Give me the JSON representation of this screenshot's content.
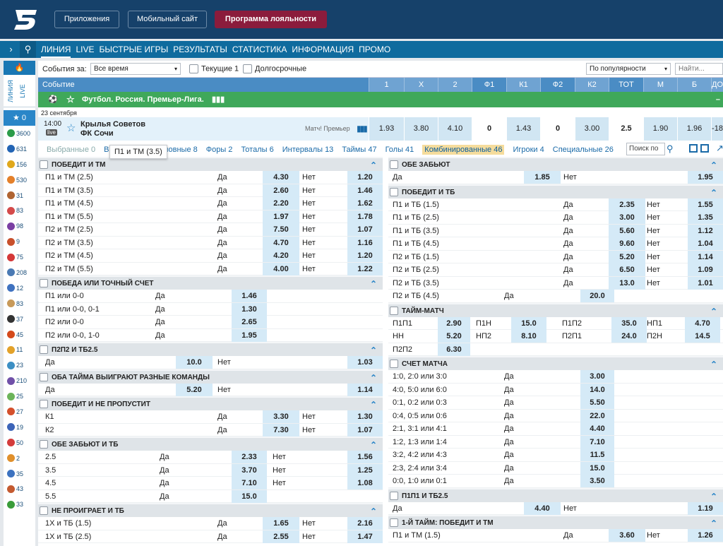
{
  "header": {
    "apps": "Приложения",
    "mobile": "Мобильный сайт",
    "loyalty": "Программа лояльности"
  },
  "nav": {
    "items": [
      "ЛИНИЯ",
      "LIVE",
      "БЫСТРЫЕ ИГРЫ",
      "РЕЗУЛЬТАТЫ",
      "СТАТИСТИКА",
      "ИНФОРМАЦИЯ",
      "ПРОМО"
    ]
  },
  "sidebar": {
    "tab_line": "ЛИНИЯ",
    "tab_live": "LIVE",
    "favorites": "0",
    "counts": [
      "3600",
      "631",
      "156",
      "530",
      "31",
      "83",
      "98",
      "9",
      "75",
      "208",
      "12",
      "83",
      "37",
      "45",
      "11",
      "23",
      "210",
      "25",
      "27",
      "19",
      "50",
      "2",
      "35",
      "43",
      "33"
    ],
    "colors": [
      "#2c9c49",
      "#2364b4",
      "#e0a81c",
      "#e4802a",
      "#b06432",
      "#d44a4a",
      "#7a3fa3",
      "#c8502c",
      "#d43838",
      "#4a7ab4",
      "#3f72c0",
      "#c89a5a",
      "#333333",
      "#d44a1c",
      "#e3a22a",
      "#3c8fc4",
      "#7050a8",
      "#6cb45a",
      "#d4502c",
      "#3c64b8",
      "#d43c3c",
      "#e0902c",
      "#3c72c0",
      "#c45a30",
      "#3a9c3a"
    ]
  },
  "filter": {
    "events_label": "События за:",
    "period": "Все время",
    "current": "Текущие 1",
    "longterm": "Долгосрочные",
    "sort": "По популярности",
    "search_placeholder": "Найти..."
  },
  "table_header": {
    "event": "Событие",
    "cols": [
      "1",
      "X",
      "2",
      "Ф1",
      "К1",
      "Ф2",
      "К2",
      "ТОТ",
      "М",
      "Б",
      "ДО"
    ]
  },
  "league": {
    "name": "Футбол. Россия. Премьер-Лига."
  },
  "match": {
    "date": "23 сентября",
    "time": "14:00",
    "live": "live",
    "team1": "Крылья Советов",
    "team2": "ФК Сочи",
    "note": "Матч! Премьер",
    "odds": [
      "1.93",
      "3.80",
      "4.10",
      "0",
      "1.43",
      "0",
      "3.00",
      "2.5",
      "1.90",
      "1.96",
      "-18"
    ]
  },
  "market_tabs": [
    "Выбранные 0",
    "Все исходы",
    "Основные 8",
    "Форы 2",
    "Тоталы 6",
    "Интервалы 13",
    "Таймы 47",
    "Голы 41",
    "Комбинированные 46",
    "Игроки 4",
    "Специальные 26"
  ],
  "market_search": "Поиск по",
  "tooltip": "П1 и ТМ (3.5)",
  "left_blocks": [
    {
      "title": "ПОБЕДИТ И ТМ",
      "rows": [
        [
          "П1 и ТМ (2.5)",
          "Да",
          "4.30",
          "Нет",
          "1.20"
        ],
        [
          "П1 и ТМ (3.5)",
          "Да",
          "2.60",
          "Нет",
          "1.46"
        ],
        [
          "П1 и ТМ (4.5)",
          "Да",
          "2.20",
          "Нет",
          "1.62"
        ],
        [
          "П1 и ТМ (5.5)",
          "Да",
          "1.97",
          "Нет",
          "1.78"
        ],
        [
          "П2 и ТМ (2.5)",
          "Да",
          "7.50",
          "Нет",
          "1.07"
        ],
        [
          "П2 и ТМ (3.5)",
          "Да",
          "4.70",
          "Нет",
          "1.16"
        ],
        [
          "П2 и ТМ (4.5)",
          "Да",
          "4.20",
          "Нет",
          "1.20"
        ],
        [
          "П2 и ТМ (5.5)",
          "Да",
          "4.00",
          "Нет",
          "1.22"
        ]
      ]
    },
    {
      "title": "ПОБЕДА ИЛИ ТОЧНЫЙ СЧЕТ",
      "rows": [
        [
          "П1 или 0-0",
          "Да",
          "1.46"
        ],
        [
          "П1 или 0-0, 0-1",
          "Да",
          "1.30"
        ],
        [
          "П2 или 0-0",
          "Да",
          "2.65"
        ],
        [
          "П2 или 0-0, 1-0",
          "Да",
          "1.95"
        ]
      ]
    },
    {
      "title": "П2П2 И ТБ2.5",
      "rows": [
        [
          "Да",
          "10.0",
          "Нет",
          "1.03"
        ]
      ]
    },
    {
      "title": "ОБА ТАЙМА ВЫИГРАЮТ РАЗНЫЕ КОМАНДЫ",
      "rows": [
        [
          "Да",
          "5.20",
          "Нет",
          "1.14"
        ]
      ]
    },
    {
      "title": "ПОБЕДИТ И НЕ ПРОПУСТИТ",
      "rows": [
        [
          "К1",
          "Да",
          "3.30",
          "Нет",
          "1.30"
        ],
        [
          "К2",
          "Да",
          "7.30",
          "Нет",
          "1.07"
        ]
      ]
    },
    {
      "title": "ОБЕ ЗАБЬЮТ И ТБ",
      "rows": [
        [
          "2.5",
          "Да",
          "2.33",
          "Нет",
          "1.56"
        ],
        [
          "3.5",
          "Да",
          "3.70",
          "Нет",
          "1.25"
        ],
        [
          "4.5",
          "Да",
          "7.10",
          "Нет",
          "1.08"
        ],
        [
          "5.5",
          "Да",
          "15.0"
        ]
      ]
    },
    {
      "title": "НЕ ПРОИГРАЕТ И ТБ",
      "rows": [
        [
          "1Х и ТБ (1.5)",
          "Да",
          "1.65",
          "Нет",
          "2.16"
        ],
        [
          "1Х и ТБ (2.5)",
          "Да",
          "2.55",
          "Нет",
          "1.47"
        ]
      ]
    }
  ],
  "right_blocks": [
    {
      "title": "ОБЕ ЗАБЬЮТ",
      "rows": [
        [
          "Да",
          "1.85",
          "Нет",
          "1.95"
        ]
      ]
    },
    {
      "title": "ПОБЕДИТ И ТБ",
      "rows": [
        [
          "П1 и ТБ (1.5)",
          "Да",
          "2.35",
          "Нет",
          "1.55"
        ],
        [
          "П1 и ТБ (2.5)",
          "Да",
          "3.00",
          "Нет",
          "1.35"
        ],
        [
          "П1 и ТБ (3.5)",
          "Да",
          "5.60",
          "Нет",
          "1.12"
        ],
        [
          "П1 и ТБ (4.5)",
          "Да",
          "9.60",
          "Нет",
          "1.04"
        ],
        [
          "П2 и ТБ (1.5)",
          "Да",
          "5.20",
          "Нет",
          "1.14"
        ],
        [
          "П2 и ТБ (2.5)",
          "Да",
          "6.50",
          "Нет",
          "1.09"
        ],
        [
          "П2 и ТБ (3.5)",
          "Да",
          "13.0",
          "Нет",
          "1.01"
        ],
        [
          "П2 и ТБ (4.5)",
          "Да",
          "20.0"
        ]
      ]
    },
    {
      "title": "ТАЙМ-МАТЧ",
      "rows": [
        [
          "П1П1",
          "2.90",
          "П1Н",
          "15.0",
          "П1П2",
          "35.0",
          "НП1",
          "4.70"
        ],
        [
          "НН",
          "5.20",
          "НП2",
          "8.10",
          "П2П1",
          "24.0",
          "П2Н",
          "14.5"
        ],
        [
          "П2П2",
          "6.30"
        ]
      ]
    },
    {
      "title": "СЧЕТ МАТЧА",
      "rows": [
        [
          "1:0, 2:0 или 3:0",
          "Да",
          "3.00"
        ],
        [
          "4:0, 5:0 или 6:0",
          "Да",
          "14.0"
        ],
        [
          "0:1, 0:2 или 0:3",
          "Да",
          "5.50"
        ],
        [
          "0:4, 0:5 или 0:6",
          "Да",
          "22.0"
        ],
        [
          "2:1, 3:1 или 4:1",
          "Да",
          "4.40"
        ],
        [
          "1:2, 1:3 или 1:4",
          "Да",
          "7.10"
        ],
        [
          "3:2, 4:2 или 4:3",
          "Да",
          "11.5"
        ],
        [
          "2:3, 2:4 или 3:4",
          "Да",
          "15.0"
        ],
        [
          "0:0, 1:0 или 0:1",
          "Да",
          "3.50"
        ]
      ]
    },
    {
      "title": "П1П1 И ТБ2.5",
      "rows": [
        [
          "Да",
          "4.40",
          "Нет",
          "1.19"
        ]
      ]
    },
    {
      "title": "1-Й ТАЙМ: ПОБЕДИТ И ТМ",
      "rows": [
        [
          "П1 и ТМ (1.5)",
          "Да",
          "3.60",
          "Нет",
          "1.26"
        ]
      ]
    }
  ]
}
